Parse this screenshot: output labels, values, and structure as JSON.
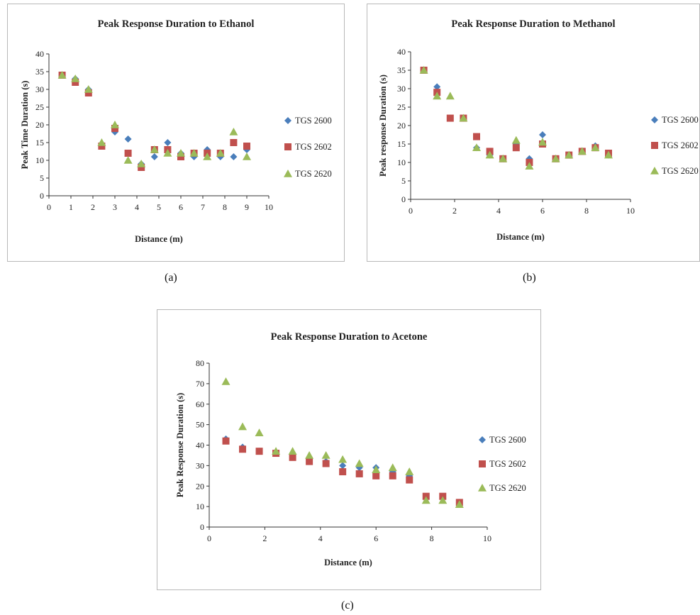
{
  "captions": [
    "(a)",
    "(b)",
    "(c)"
  ],
  "chart_data": [
    {
      "type": "scatter",
      "title": "Peak Response Duration to Ethanol",
      "xlabel": "Distance (m)",
      "ylabel": "Peak Time Duration (s)",
      "xlim": [
        0,
        10
      ],
      "ylim": [
        0,
        40
      ],
      "xticks": [
        0,
        1,
        2,
        3,
        4,
        5,
        6,
        7,
        8,
        9,
        10
      ],
      "yticks": [
        0,
        5,
        10,
        15,
        20,
        25,
        30,
        35,
        40
      ],
      "grid": false,
      "legend_position": "right",
      "series": [
        {
          "name": "TGS 2600",
          "marker": "diamond",
          "color": "#4a7ebb",
          "x": [
            0.6,
            1.2,
            1.8,
            2.4,
            3.0,
            3.6,
            4.2,
            4.8,
            5.4,
            6.0,
            6.6,
            7.2,
            7.8,
            8.4,
            9.0
          ],
          "y": [
            34,
            33,
            30,
            14,
            18,
            16,
            9,
            11,
            15,
            12,
            11,
            13,
            11,
            11,
            13
          ]
        },
        {
          "name": "TGS 2602",
          "marker": "square",
          "color": "#c0504d",
          "x": [
            0.6,
            1.2,
            1.8,
            2.4,
            3.0,
            3.6,
            4.2,
            4.8,
            5.4,
            6.0,
            6.6,
            7.2,
            7.8,
            8.4,
            9.0
          ],
          "y": [
            34,
            32,
            29,
            14,
            19,
            12,
            8,
            13,
            13,
            11,
            12,
            12,
            12,
            15,
            14
          ]
        },
        {
          "name": "TGS 2620",
          "marker": "triangle",
          "color": "#9bbb59",
          "x": [
            0.6,
            1.2,
            1.8,
            2.4,
            3.0,
            3.6,
            4.2,
            4.8,
            5.4,
            6.0,
            6.6,
            7.2,
            7.8,
            8.4,
            9.0
          ],
          "y": [
            34,
            33,
            30,
            15,
            20,
            10,
            9,
            13,
            12,
            12,
            12,
            11,
            12,
            18,
            11
          ]
        }
      ]
    },
    {
      "type": "scatter",
      "title": "Peak Response Duration to Methanol",
      "xlabel": "Distance (m)",
      "ylabel": "Peak response Duration (s)",
      "xlim": [
        0,
        10
      ],
      "ylim": [
        0,
        40
      ],
      "xticks": [
        0,
        2,
        4,
        6,
        8,
        10
      ],
      "yticks": [
        0,
        5,
        10,
        15,
        20,
        25,
        30,
        35,
        40
      ],
      "grid": false,
      "legend_position": "right",
      "series": [
        {
          "name": "TGS 2600",
          "marker": "diamond",
          "color": "#4a7ebb",
          "x": [
            0.6,
            1.2,
            1.8,
            2.4,
            3.0,
            3.6,
            4.2,
            4.8,
            5.4,
            6.0,
            6.6,
            7.2,
            7.8,
            8.4,
            9.0
          ],
          "y": [
            35,
            30.5,
            22,
            22,
            14,
            12,
            11,
            15,
            11,
            17.5,
            11,
            12,
            13,
            14.5,
            12
          ]
        },
        {
          "name": "TGS 2602",
          "marker": "square",
          "color": "#c0504d",
          "x": [
            0.6,
            1.2,
            1.8,
            2.4,
            3.0,
            3.6,
            4.2,
            4.8,
            5.4,
            6.0,
            6.6,
            7.2,
            7.8,
            8.4,
            9.0
          ],
          "y": [
            35,
            29,
            22,
            22,
            17,
            13,
            11,
            14,
            10,
            15,
            11,
            12,
            13,
            14,
            12.5
          ]
        },
        {
          "name": "TGS 2620",
          "marker": "triangle",
          "color": "#9bbb59",
          "x": [
            0.6,
            1.2,
            1.8,
            2.4,
            3.0,
            3.6,
            4.2,
            4.8,
            5.4,
            6.0,
            6.6,
            7.2,
            7.8,
            8.4,
            9.0
          ],
          "y": [
            35,
            28,
            28,
            22,
            14,
            12,
            11,
            16,
            9,
            15.5,
            11,
            12,
            13,
            14,
            12
          ]
        }
      ]
    },
    {
      "type": "scatter",
      "title": "Peak Response Duration to Acetone",
      "xlabel": "Distance (m)",
      "ylabel": "Peak Response Duration (s)",
      "xlim": [
        0,
        10
      ],
      "ylim": [
        0,
        80
      ],
      "xticks": [
        0,
        2,
        4,
        6,
        8,
        10
      ],
      "yticks": [
        0,
        10,
        20,
        30,
        40,
        50,
        60,
        70,
        80
      ],
      "grid": false,
      "legend_position": "right",
      "series": [
        {
          "name": "TGS 2600",
          "marker": "diamond",
          "color": "#4a7ebb",
          "x": [
            0.6,
            1.2,
            1.8,
            2.4,
            3.0,
            3.6,
            4.2,
            4.8,
            5.4,
            6.0,
            6.6,
            7.2,
            7.8,
            8.4,
            9.0
          ],
          "y": [
            43,
            39,
            37,
            36,
            35,
            33,
            32,
            30,
            29,
            29,
            27,
            25,
            14,
            14,
            12
          ]
        },
        {
          "name": "TGS 2602",
          "marker": "square",
          "color": "#c0504d",
          "x": [
            0.6,
            1.2,
            1.8,
            2.4,
            3.0,
            3.6,
            4.2,
            4.8,
            5.4,
            6.0,
            6.6,
            7.2,
            7.8,
            8.4,
            9.0
          ],
          "y": [
            42,
            38,
            37,
            36,
            34,
            32,
            31,
            27,
            26,
            25,
            25,
            23,
            15,
            15,
            12
          ]
        },
        {
          "name": "TGS 2620",
          "marker": "triangle",
          "color": "#9bbb59",
          "x": [
            0.6,
            1.2,
            1.8,
            2.4,
            3.0,
            3.6,
            4.2,
            4.8,
            5.4,
            6.0,
            6.6,
            7.2,
            7.8,
            8.4,
            9.0
          ],
          "y": [
            71,
            49,
            46,
            37,
            37,
            35,
            35,
            33,
            31,
            28,
            29,
            27,
            13,
            13,
            11
          ]
        }
      ]
    }
  ]
}
